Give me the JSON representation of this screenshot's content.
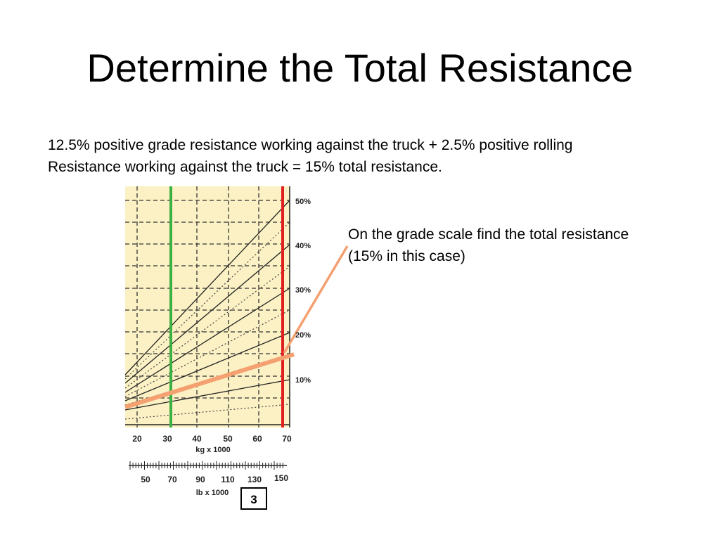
{
  "slide": {
    "title": "Determine the Total Resistance",
    "body_line1": "12.5% positive grade resistance working against the truck + 2.5% positive rolling",
    "body_line2": "Resistance working against the truck = 15% total resistance.",
    "callout_line1": "On the grade scale find the total resistance",
    "callout_line2": "(15% in this case)"
  },
  "chart": {
    "grade_labels": [
      "50%",
      "40%",
      "30%",
      "20%",
      "10%"
    ],
    "kg_ticks": [
      "20",
      "30",
      "40",
      "50",
      "60",
      "70"
    ],
    "kg_unit": "kg x 1000",
    "lb_ticks": [
      "50",
      "70",
      "90",
      "110",
      "130",
      "150"
    ],
    "lb_unit": "lb x 1000",
    "chart_number": "3",
    "colors": {
      "background": "#fbf1c4",
      "weight_line": "#3cb043",
      "max_line": "#e02020",
      "resistance_line": "#f4a070"
    }
  }
}
